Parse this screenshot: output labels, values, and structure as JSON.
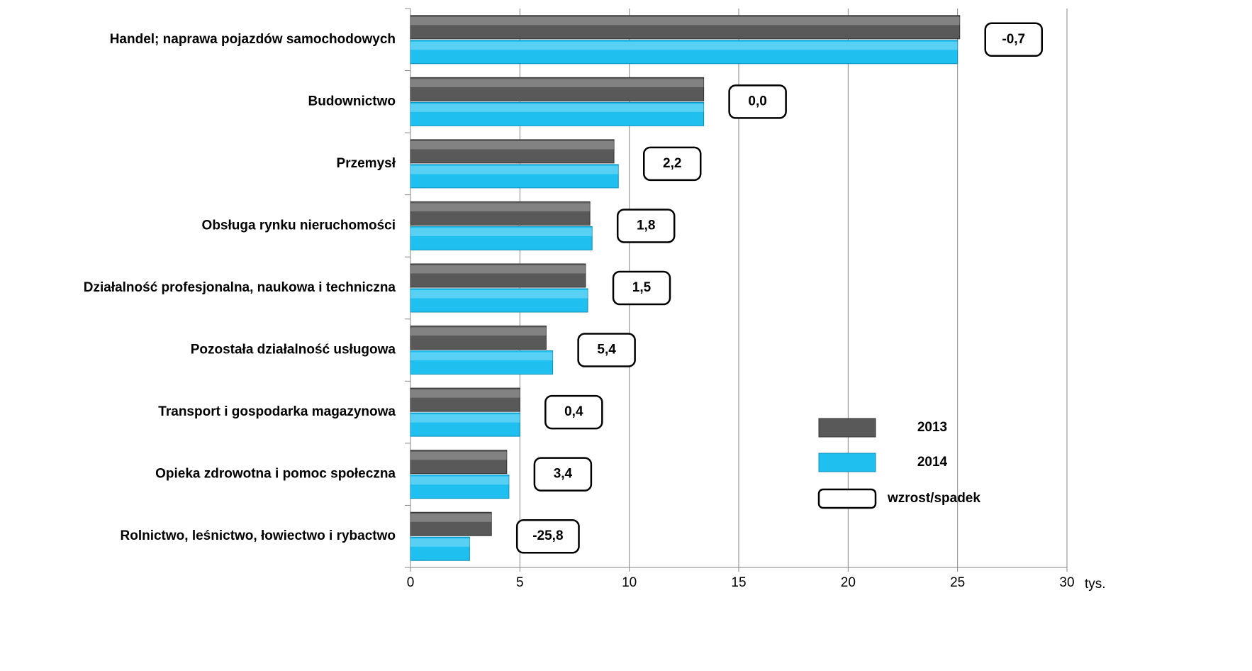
{
  "chart_data": {
    "type": "bar",
    "orientation": "horizontal",
    "categories": [
      "Handel; naprawa pojazdów samochodowych",
      "Budownictwo",
      "Przemysł",
      "Obsługa rynku nieruchomości",
      "Działalność profesjonalna, naukowa i techniczna",
      "Pozostała działalność usługowa",
      "Transport i gospodarka magazynowa",
      "Opieka zdrowotna i pomoc społeczna",
      "Rolnictwo, leśnictwo, łowiectwo i rybactwo"
    ],
    "series": [
      {
        "name": "2013",
        "color": "#595959",
        "values": [
          25.1,
          13.4,
          9.3,
          8.2,
          8.0,
          6.2,
          5.0,
          4.4,
          3.7
        ]
      },
      {
        "name": "2014",
        "color": "#1fc0f0",
        "values": [
          25.0,
          13.4,
          9.5,
          8.3,
          8.1,
          6.5,
          5.0,
          4.5,
          2.7
        ]
      }
    ],
    "changes": {
      "name": "wzrost/spadek",
      "values": [
        -0.7,
        0.0,
        2.2,
        1.8,
        1.5,
        5.4,
        0.4,
        3.4,
        -25.8
      ],
      "value_labels": [
        "-0,7",
        "0,0",
        "2,2",
        "1,8",
        "1,5",
        "5,4",
        "0,4",
        "3,4",
        "-25,8"
      ]
    },
    "xlabel": "tys.",
    "xlim": [
      0,
      30
    ],
    "xticks": [
      0,
      5,
      10,
      15,
      20,
      25,
      30
    ],
    "grid": true,
    "legend": "lower right"
  }
}
